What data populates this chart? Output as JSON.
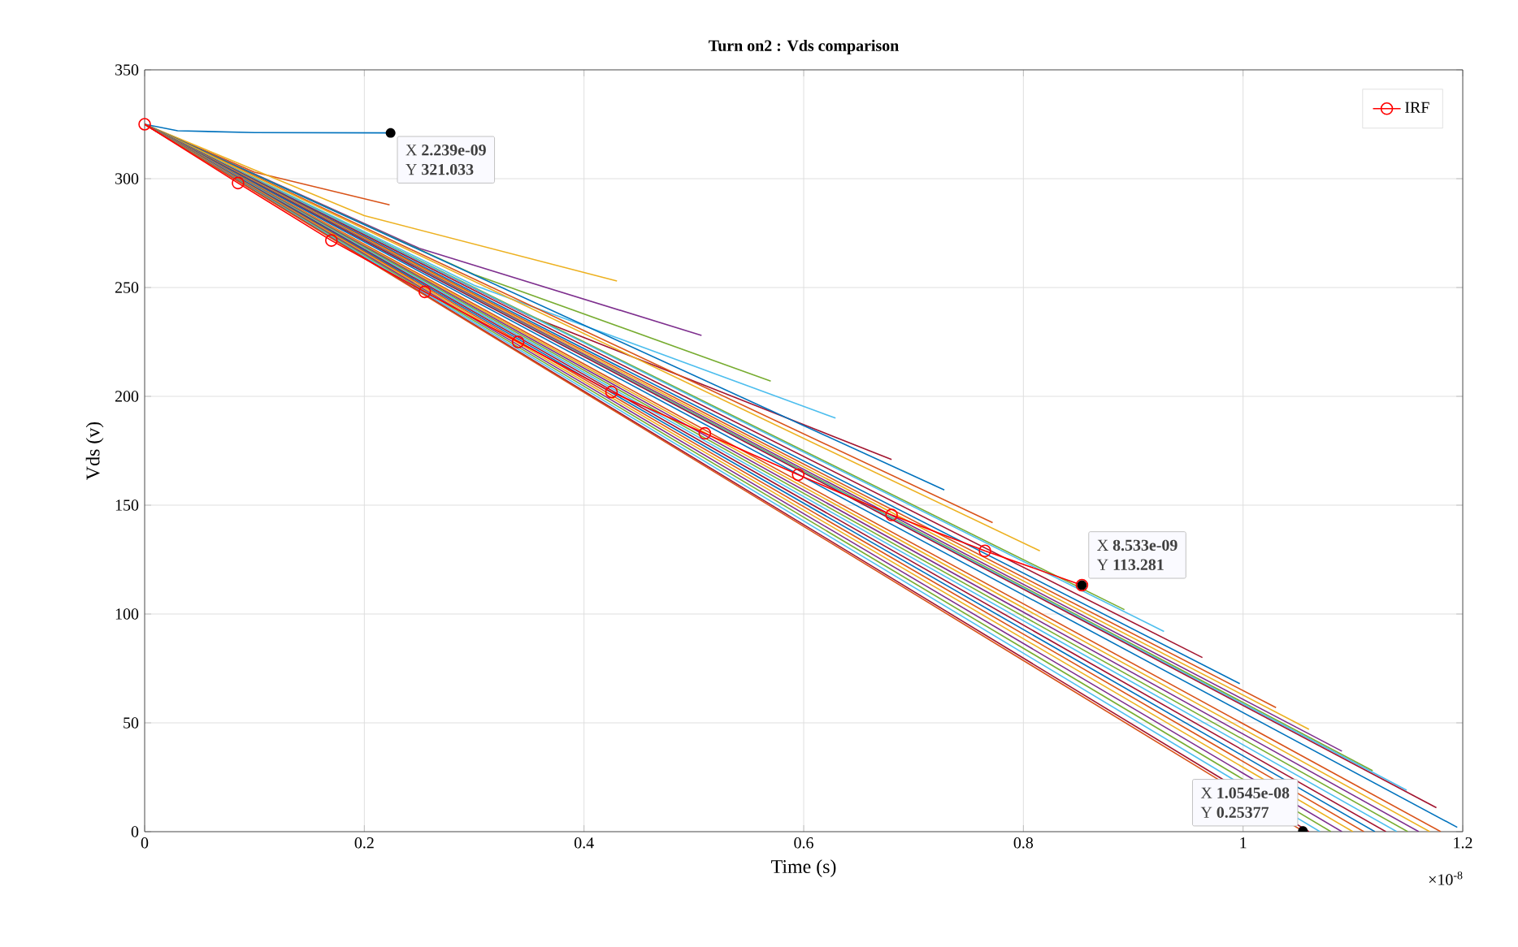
{
  "chart_data": {
    "type": "line",
    "title": "Turn on2 : Vds comparison",
    "xlabel": "Time (s)",
    "ylabel": "Vds (v)",
    "xlim": [
      0,
      1.2
    ],
    "ylim": [
      0,
      350
    ],
    "xticks": [
      0,
      0.2,
      0.4,
      0.6,
      0.8,
      1,
      1.2
    ],
    "yticks": [
      0,
      50,
      100,
      150,
      200,
      250,
      300,
      350
    ],
    "grid": true,
    "legend": "top right",
    "annotations": [
      {
        "text": "X **2.239e-09**",
        "x": 0.2239,
        "y": 321.033
      },
      {
        "text": "Y **321.033**",
        "x": 0.2239,
        "y": 321.033
      },
      {
        "text": "X **8.533e-09**",
        "x": 0.8533,
        "y": 113.281
      },
      {
        "text": "Y **113.281**",
        "x": 0.8533,
        "y": 113.281
      },
      {
        "text": "X **1.0545e-08**",
        "x": 1.0545,
        "y": 0.25377
      },
      {
        "text": "Y **0.25377**",
        "x": 1.0545,
        "y": 0.25377
      },
      "×10$^{-8}$"
    ],
    "series": [
      {
        "color": "#0072bd",
        "x": [
          0,
          0.03,
          0.1,
          0.2239
        ],
        "values": [
          325,
          322,
          321.2,
          321.033
        ]
      },
      {
        "color": "#d95319",
        "x": [
          0,
          0.1,
          0.223
        ],
        "values": [
          325,
          303,
          288
        ]
      },
      {
        "color": "#edb120",
        "x": [
          0,
          0.2,
          0.43
        ],
        "values": [
          325,
          283,
          253
        ]
      },
      {
        "color": "#7e2f8e",
        "x": [
          0,
          0.25,
          0.507
        ],
        "values": [
          325,
          268,
          228
        ]
      },
      {
        "color": "#77ac30",
        "x": [
          0,
          0.3,
          0.57
        ],
        "values": [
          325,
          256,
          207
        ]
      },
      {
        "color": "#4dbeee",
        "x": [
          0,
          0.3,
          0.629
        ],
        "values": [
          325,
          251,
          190
        ]
      },
      {
        "color": "#a2142f",
        "x": [
          0,
          0.35,
          0.68
        ],
        "values": [
          325,
          237,
          171
        ]
      },
      {
        "color": "#0072bd",
        "x": [
          0,
          0.728
        ],
        "values": [
          325,
          157
        ]
      },
      {
        "color": "#d95319",
        "x": [
          0,
          0.772
        ],
        "values": [
          325,
          142
        ]
      },
      {
        "color": "#edb120",
        "x": [
          0,
          0.815
        ],
        "values": [
          325,
          129
        ]
      },
      {
        "color": "#77ac30",
        "x": [
          0,
          0.892
        ],
        "values": [
          325,
          102
        ]
      },
      {
        "color": "#4dbeee",
        "x": [
          0,
          0.928
        ],
        "values": [
          325,
          92
        ]
      },
      {
        "color": "#a2142f",
        "x": [
          0,
          0.963
        ],
        "values": [
          325,
          80
        ]
      },
      {
        "color": "#0072bd",
        "x": [
          0,
          0.997
        ],
        "values": [
          325,
          68
        ]
      },
      {
        "color": "#d95319",
        "x": [
          0,
          1.03
        ],
        "values": [
          325,
          57
        ]
      },
      {
        "color": "#edb120",
        "x": [
          0,
          1.06
        ],
        "values": [
          325,
          47
        ]
      },
      {
        "color": "#7e2f8e",
        "x": [
          0,
          1.09
        ],
        "values": [
          325,
          37
        ]
      },
      {
        "color": "#77ac30",
        "x": [
          0,
          1.118
        ],
        "values": [
          325,
          28
        ]
      },
      {
        "color": "#4dbeee",
        "x": [
          0,
          1.149
        ],
        "values": [
          325,
          19
        ]
      },
      {
        "color": "#a2142f",
        "x": [
          0,
          1.176
        ],
        "values": [
          325,
          11
        ]
      },
      {
        "color": "#0072bd",
        "x": [
          0,
          1.195
        ],
        "values": [
          325,
          2
        ]
      },
      {
        "color": "#d95319",
        "x": [
          0,
          1.18
        ],
        "values": [
          325,
          0
        ]
      },
      {
        "color": "#edb120",
        "x": [
          0,
          1.17
        ],
        "values": [
          325,
          0
        ]
      },
      {
        "color": "#7e2f8e",
        "x": [
          0,
          1.16
        ],
        "values": [
          325,
          0
        ]
      },
      {
        "color": "#77ac30",
        "x": [
          0,
          1.15
        ],
        "values": [
          325,
          0
        ]
      },
      {
        "color": "#4dbeee",
        "x": [
          0,
          1.14
        ],
        "values": [
          325,
          0
        ]
      },
      {
        "color": "#a2142f",
        "x": [
          0,
          1.13
        ],
        "values": [
          325,
          0
        ]
      },
      {
        "color": "#0072bd",
        "x": [
          0,
          1.12
        ],
        "values": [
          325,
          0
        ]
      },
      {
        "color": "#d95319",
        "x": [
          0,
          1.11
        ],
        "values": [
          325,
          0
        ]
      },
      {
        "color": "#edb120",
        "x": [
          0,
          1.1
        ],
        "values": [
          325,
          0
        ]
      },
      {
        "color": "#7e2f8e",
        "x": [
          0,
          1.09
        ],
        "values": [
          325,
          0
        ]
      },
      {
        "color": "#77ac30",
        "x": [
          0,
          1.08
        ],
        "values": [
          325,
          0
        ]
      },
      {
        "color": "#4dbeee",
        "x": [
          0,
          1.07
        ],
        "values": [
          325,
          0
        ]
      },
      {
        "color": "#a2142f",
        "x": [
          0,
          1.06
        ],
        "values": [
          325,
          0
        ]
      },
      {
        "color": "#d95319",
        "x": [
          0,
          1.0545
        ],
        "values": [
          325,
          0.25377
        ]
      },
      {
        "name": "IRF",
        "color": "#ff0000",
        "marker": "circle",
        "x": [
          0,
          0.085,
          0.17,
          0.255,
          0.34,
          0.425,
          0.51,
          0.595,
          0.68,
          0.765,
          0.8533
        ],
        "values": [
          325,
          298,
          271.6,
          248,
          225,
          202,
          183,
          164,
          145.5,
          129,
          113.281
        ]
      }
    ]
  }
}
